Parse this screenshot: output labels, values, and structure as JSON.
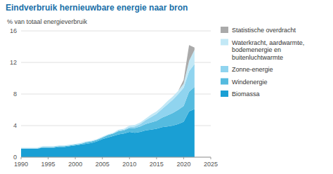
{
  "chart_data": {
    "type": "area",
    "stacked": true,
    "title": "Eindverbruik hernieuwbare energie naar bron",
    "title_color": "#1a6fa8",
    "ylabel": "% van totaal energieverbruik",
    "xlim": [
      1990,
      2025
    ],
    "ylim": [
      0,
      16
    ],
    "xticks": [
      1990,
      1995,
      2000,
      2005,
      2010,
      2015,
      2020,
      2025
    ],
    "yticks": [
      0,
      4,
      8,
      12,
      16
    ],
    "grid": true,
    "legend": "right",
    "x": [
      1990,
      1991,
      1992,
      1993,
      1994,
      1995,
      1996,
      1997,
      1998,
      1999,
      2000,
      2001,
      2002,
      2003,
      2004,
      2005,
      2006,
      2007,
      2008,
      2009,
      2010,
      2011,
      2012,
      2013,
      2014,
      2015,
      2016,
      2017,
      2018,
      2019,
      2020,
      2021,
      2022
    ],
    "series": [
      {
        "name": "Biomassa",
        "color": "#1a9fd4",
        "values": [
          1.1,
          1.1,
          1.1,
          1.1,
          1.2,
          1.2,
          1.2,
          1.3,
          1.3,
          1.4,
          1.5,
          1.6,
          1.7,
          1.8,
          2.0,
          2.3,
          2.5,
          2.7,
          2.9,
          3.0,
          3.2,
          3.1,
          3.2,
          3.4,
          3.5,
          3.6,
          3.8,
          3.9,
          4.0,
          4.2,
          4.5,
          5.8,
          6.1
        ]
      },
      {
        "name": "Windenergie",
        "color": "#55bbdf",
        "values": [
          0.0,
          0.0,
          0.0,
          0.0,
          0.1,
          0.1,
          0.1,
          0.1,
          0.1,
          0.1,
          0.1,
          0.1,
          0.2,
          0.2,
          0.2,
          0.2,
          0.3,
          0.3,
          0.4,
          0.4,
          0.5,
          0.6,
          0.7,
          0.8,
          0.9,
          1.0,
          1.2,
          1.4,
          1.6,
          1.8,
          2.0,
          2.5,
          2.8
        ]
      },
      {
        "name": "Zonne-energie",
        "color": "#90d4ef",
        "values": [
          0.0,
          0.0,
          0.0,
          0.0,
          0.0,
          0.0,
          0.0,
          0.0,
          0.0,
          0.0,
          0.0,
          0.0,
          0.0,
          0.0,
          0.0,
          0.0,
          0.0,
          0.0,
          0.1,
          0.1,
          0.1,
          0.2,
          0.3,
          0.5,
          0.7,
          0.9,
          1.1,
          1.4,
          1.7,
          2.0,
          2.3,
          2.6,
          2.9
        ]
      },
      {
        "name": "Waterkracht, aardwarmte,\nbodemenergie en\nbuitenluchtwarmte",
        "color": "#c2e8f6",
        "values": [
          0.1,
          0.1,
          0.1,
          0.1,
          0.1,
          0.1,
          0.1,
          0.1,
          0.1,
          0.1,
          0.1,
          0.1,
          0.1,
          0.1,
          0.1,
          0.1,
          0.1,
          0.1,
          0.1,
          0.1,
          0.2,
          0.2,
          0.2,
          0.2,
          0.3,
          0.3,
          0.3,
          0.4,
          0.4,
          0.4,
          0.5,
          1.3,
          1.8
        ]
      },
      {
        "name": "Statistische overdracht",
        "color": "#aaaaaa",
        "values": [
          0.0,
          0.0,
          0.0,
          0.0,
          0.0,
          0.0,
          0.0,
          0.0,
          0.0,
          0.0,
          0.0,
          0.0,
          0.0,
          0.0,
          0.0,
          0.0,
          0.0,
          0.0,
          0.0,
          0.0,
          0.0,
          0.0,
          0.0,
          0.0,
          0.0,
          0.0,
          0.0,
          0.0,
          0.0,
          0.0,
          0.5,
          2.0,
          0.3
        ]
      }
    ]
  }
}
